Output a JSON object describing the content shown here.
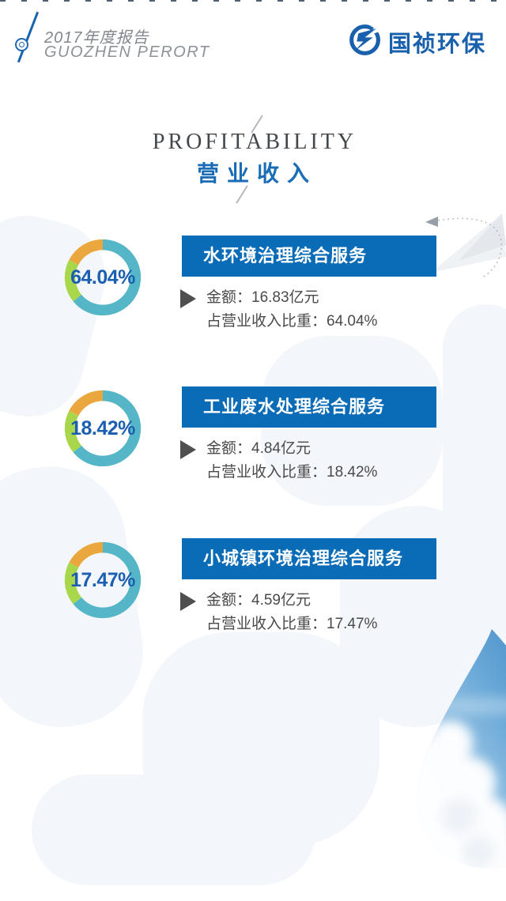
{
  "header": {
    "report_title_cn": "2017年度报告",
    "report_title_en": "GUOZHEN PERORT",
    "brand_name": "国祯环保"
  },
  "section": {
    "title_en": "PROFITABILITY",
    "title_cn": "营业收入"
  },
  "chart_data": {
    "type": "pie",
    "title": "营业收入",
    "categories": [
      "水环境治理综合服务",
      "工业废水处理综合服务",
      "小城镇环境治理综合服务"
    ],
    "values": [
      64.04,
      18.42,
      17.47
    ],
    "amounts": [
      16.83,
      4.84,
      4.59
    ],
    "amount_unit": "亿元",
    "value_unit": "%",
    "segment_colors": [
      "#54b6c6",
      "#a8d74b",
      "#eaa73e"
    ],
    "legend_position": "none",
    "center_labels": [
      "64.04%",
      "18.42%",
      "17.47%"
    ]
  },
  "rows": [
    {
      "percent_label": "64.04%",
      "title": "水环境治理综合服务",
      "amount_line": "金额：16.83亿元",
      "share_line": "占营业收入比重：64.04%"
    },
    {
      "percent_label": "18.42%",
      "title": "工业废水处理综合服务",
      "amount_line": "金额：4.84亿元",
      "share_line": "占营业收入比重：18.42%"
    },
    {
      "percent_label": "17.47%",
      "title": "小城镇环境治理综合服务",
      "amount_line": "金额：4.59亿元",
      "share_line": "占营业收入比重：17.47%"
    }
  ],
  "colors": {
    "bar_blue": "#0a6bb7",
    "logo_blue": "#1961ad",
    "title_blue": "#196cb5",
    "percent_blue": "#1b5fb0",
    "text_gray": "#4a4a4a",
    "donut_teal": "#54b6c6",
    "donut_lime": "#a8d74b",
    "donut_orange": "#eaa73e"
  }
}
